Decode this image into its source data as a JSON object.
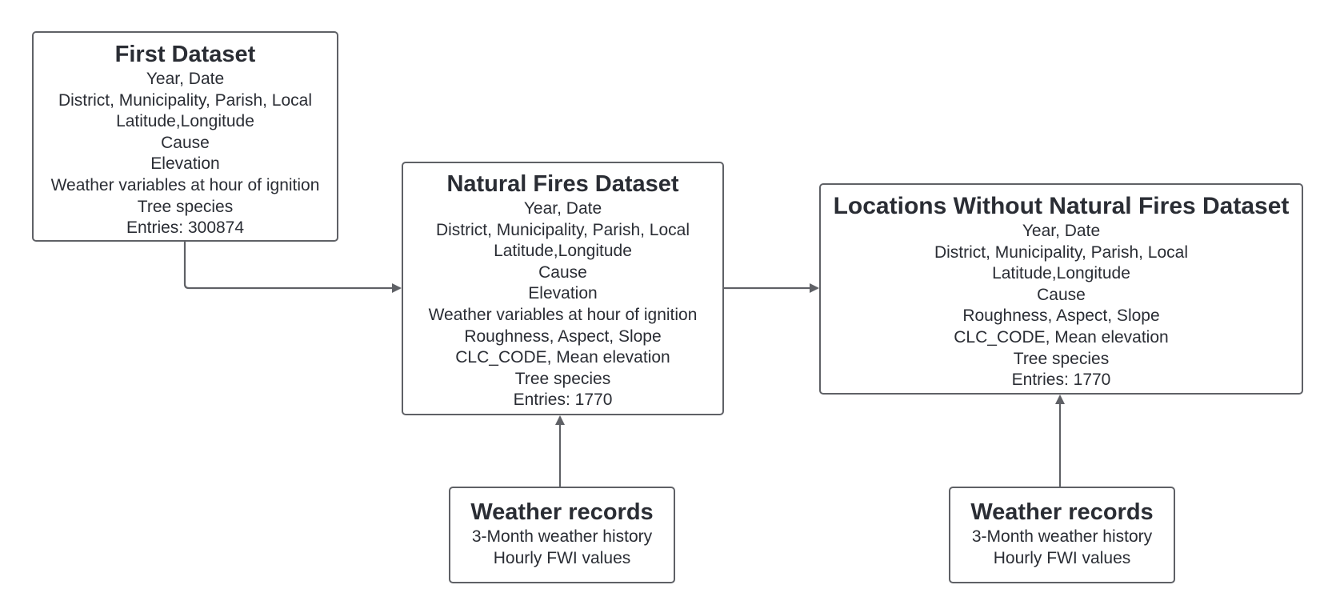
{
  "diagram": {
    "nodes": [
      {
        "id": "first",
        "title": "First Dataset",
        "lines": [
          "Year, Date",
          "District, Municipality, Parish, Local",
          "Latitude,Longitude",
          "Cause",
          "Elevation",
          "Weather variables at hour of ignition",
          "Tree species",
          "Entries: 300874"
        ]
      },
      {
        "id": "natural",
        "title": "Natural Fires Dataset",
        "lines": [
          "Year, Date",
          "District, Municipality, Parish, Local",
          "Latitude,Longitude",
          "Cause",
          "Elevation",
          "Weather variables at hour of ignition",
          "Roughness, Aspect, Slope",
          "CLC_CODE, Mean elevation",
          "Tree species",
          "Entries: 1770"
        ]
      },
      {
        "id": "locations",
        "title": "Locations Without Natural Fires Dataset",
        "lines": [
          "Year, Date",
          "District, Municipality, Parish, Local",
          "Latitude,Longitude",
          "Cause",
          "Roughness, Aspect, Slope",
          "CLC_CODE, Mean elevation",
          "Tree species",
          "Entries: 1770"
        ]
      },
      {
        "id": "weather1",
        "title": "Weather records",
        "lines": [
          "3-Month weather history",
          "Hourly FWI values"
        ]
      },
      {
        "id": "weather2",
        "title": "Weather records",
        "lines": [
          "3-Month weather history",
          "Hourly FWI values"
        ]
      }
    ],
    "edges": [
      {
        "from": "first",
        "to": "natural"
      },
      {
        "from": "natural",
        "to": "locations"
      },
      {
        "from": "weather1",
        "to": "natural"
      },
      {
        "from": "weather2",
        "to": "locations"
      }
    ],
    "colors": {
      "stroke": "#5f6166",
      "text": "#2a2d34",
      "background": "#ffffff"
    }
  }
}
